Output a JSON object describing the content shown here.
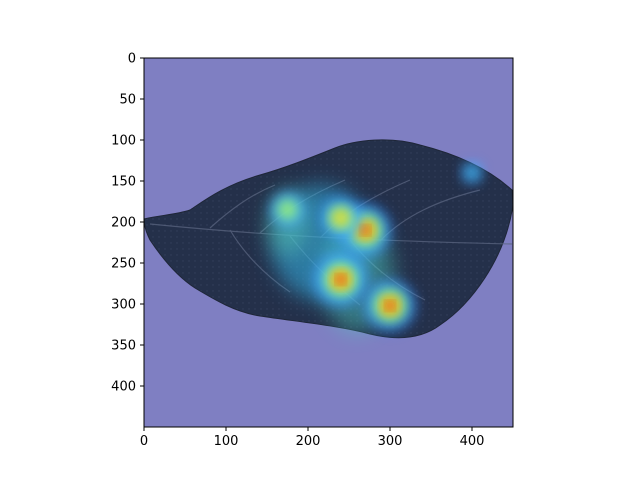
{
  "chart_data": {
    "type": "heatmap",
    "title": "",
    "xlabel": "",
    "ylabel": "",
    "xlim": [
      0,
      450
    ],
    "ylim": [
      450,
      0
    ],
    "x_ticks": [
      0,
      100,
      200,
      300,
      400
    ],
    "y_ticks": [
      0,
      50,
      100,
      150,
      200,
      250,
      300,
      350,
      400
    ],
    "x_tick_labels": [
      "0",
      "100",
      "200",
      "300",
      "400"
    ],
    "y_tick_labels": [
      "0",
      "50",
      "100",
      "150",
      "200",
      "250",
      "300",
      "350",
      "400"
    ],
    "grid": false,
    "colormap": "jet",
    "background_overlay_color": "#7f7fc2",
    "image_content": "leaf",
    "leaf_color": "#232e45",
    "hotspots": [
      {
        "x": 240,
        "y": 270,
        "intensity": 1.0
      },
      {
        "x": 270,
        "y": 210,
        "intensity": 0.95
      },
      {
        "x": 300,
        "y": 302,
        "intensity": 0.95
      },
      {
        "x": 240,
        "y": 195,
        "intensity": 0.7
      },
      {
        "x": 175,
        "y": 185,
        "intensity": 0.55
      },
      {
        "x": 400,
        "y": 140,
        "intensity": 0.25
      }
    ]
  }
}
